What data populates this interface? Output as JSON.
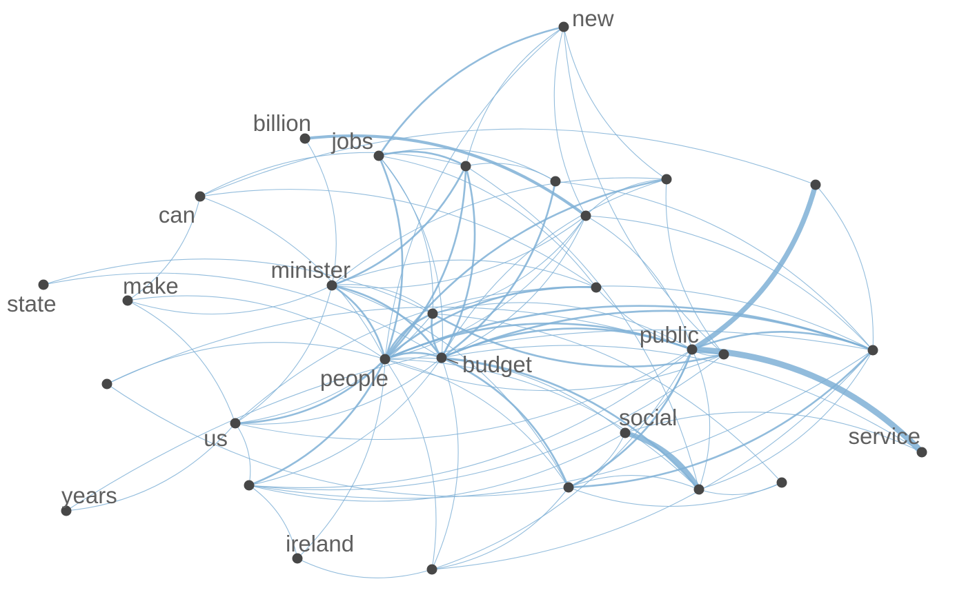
{
  "graph": {
    "colors": {
      "edge": "#7fb0d6",
      "node": "#474747",
      "label": "#5f5f5f"
    },
    "nodes": [
      {
        "id": "new",
        "label": "new"
      },
      {
        "id": "billion",
        "label": "billion"
      },
      {
        "id": "jobs",
        "label": "jobs"
      },
      {
        "id": "can",
        "label": "can"
      },
      {
        "id": "minister",
        "label": "minister"
      },
      {
        "id": "state",
        "label": "state"
      },
      {
        "id": "make",
        "label": "make"
      },
      {
        "id": "people",
        "label": "people"
      },
      {
        "id": "budget",
        "label": "budget"
      },
      {
        "id": "public",
        "label": "public"
      },
      {
        "id": "us",
        "label": "us"
      },
      {
        "id": "social",
        "label": "social"
      },
      {
        "id": "service",
        "label": "service"
      },
      {
        "id": "years",
        "label": "years"
      },
      {
        "id": "ireland",
        "label": "ireland"
      },
      {
        "id": "n1",
        "label": ""
      },
      {
        "id": "n2",
        "label": ""
      },
      {
        "id": "n3",
        "label": ""
      },
      {
        "id": "n4",
        "label": ""
      },
      {
        "id": "n5",
        "label": ""
      },
      {
        "id": "n6",
        "label": ""
      },
      {
        "id": "n7",
        "label": ""
      },
      {
        "id": "n8",
        "label": ""
      },
      {
        "id": "n9",
        "label": ""
      },
      {
        "id": "n10",
        "label": ""
      },
      {
        "id": "n11",
        "label": ""
      },
      {
        "id": "n12",
        "label": ""
      },
      {
        "id": "n13",
        "label": ""
      },
      {
        "id": "n14",
        "label": ""
      },
      {
        "id": "n15",
        "label": ""
      }
    ],
    "edges": [
      {
        "source": "jobs",
        "target": "new",
        "weight": 2
      },
      {
        "source": "n1",
        "target": "new",
        "weight": 1
      },
      {
        "source": "people",
        "target": "new",
        "weight": 1
      },
      {
        "source": "n6",
        "target": "new",
        "weight": 1
      },
      {
        "source": "n3",
        "target": "new",
        "weight": 1
      },
      {
        "source": "n4",
        "target": "new",
        "weight": 1
      },
      {
        "source": "billion",
        "target": "n3",
        "weight": 3
      },
      {
        "source": "billion",
        "target": "minister",
        "weight": 1
      },
      {
        "source": "jobs",
        "target": "n1",
        "weight": 2
      },
      {
        "source": "jobs",
        "target": "n2",
        "weight": 1
      },
      {
        "source": "jobs",
        "target": "n9",
        "weight": 1
      },
      {
        "source": "jobs",
        "target": "people",
        "weight": 2
      },
      {
        "source": "jobs",
        "target": "budget",
        "weight": 1
      },
      {
        "source": "jobs",
        "target": "n5",
        "weight": 1
      },
      {
        "source": "n1",
        "target": "n2",
        "weight": 1
      },
      {
        "source": "n1",
        "target": "minister",
        "weight": 2
      },
      {
        "source": "n1",
        "target": "people",
        "weight": 2
      },
      {
        "source": "n1",
        "target": "budget",
        "weight": 2
      },
      {
        "source": "n1",
        "target": "n12",
        "weight": 1
      },
      {
        "source": "n2",
        "target": "budget",
        "weight": 2
      },
      {
        "source": "n2",
        "target": "n7",
        "weight": 1
      },
      {
        "source": "can",
        "target": "n1",
        "weight": 1
      },
      {
        "source": "can",
        "target": "make",
        "weight": 1
      },
      {
        "source": "can",
        "target": "people",
        "weight": 1
      },
      {
        "source": "can",
        "target": "n9",
        "weight": 1
      },
      {
        "source": "n3",
        "target": "people",
        "weight": 1
      },
      {
        "source": "n3",
        "target": "budget",
        "weight": 1
      },
      {
        "source": "n3",
        "target": "n4",
        "weight": 1
      },
      {
        "source": "n3",
        "target": "public",
        "weight": 1
      },
      {
        "source": "n3",
        "target": "n7",
        "weight": 1
      },
      {
        "source": "n3",
        "target": "n5",
        "weight": 1
      },
      {
        "source": "n3",
        "target": "minister",
        "weight": 1
      },
      {
        "source": "n6",
        "target": "public",
        "weight": 1
      },
      {
        "source": "n6",
        "target": "people",
        "weight": 1
      },
      {
        "source": "n6",
        "target": "n9",
        "weight": 1
      },
      {
        "source": "can",
        "target": "n8",
        "weight": 1
      },
      {
        "source": "n8",
        "target": "public",
        "weight": 5
      },
      {
        "source": "n8",
        "target": "n7",
        "weight": 1
      },
      {
        "source": "minister",
        "target": "people",
        "weight": 2
      },
      {
        "source": "minister",
        "target": "budget",
        "weight": 2
      },
      {
        "source": "minister",
        "target": "n9",
        "weight": 1
      },
      {
        "source": "minister",
        "target": "n5",
        "weight": 1
      },
      {
        "source": "minister",
        "target": "n10",
        "weight": 1
      },
      {
        "source": "minister",
        "target": "n4",
        "weight": 1
      },
      {
        "source": "minister",
        "target": "make",
        "weight": 1
      },
      {
        "source": "minister",
        "target": "us",
        "weight": 1
      },
      {
        "source": "state",
        "target": "n5",
        "weight": 1
      },
      {
        "source": "state",
        "target": "budget",
        "weight": 1
      },
      {
        "source": "make",
        "target": "people",
        "weight": 1
      },
      {
        "source": "make",
        "target": "us",
        "weight": 1
      },
      {
        "source": "n14",
        "target": "people",
        "weight": 1
      },
      {
        "source": "n14",
        "target": "public",
        "weight": 1
      },
      {
        "source": "people",
        "target": "budget",
        "weight": 2
      },
      {
        "source": "people",
        "target": "n9",
        "weight": 2
      },
      {
        "source": "people",
        "target": "n5",
        "weight": 2
      },
      {
        "source": "people",
        "target": "n4",
        "weight": 2
      },
      {
        "source": "people",
        "target": "public",
        "weight": 2
      },
      {
        "source": "people",
        "target": "n7",
        "weight": 2
      },
      {
        "source": "people",
        "target": "social",
        "weight": 1
      },
      {
        "source": "people",
        "target": "n10",
        "weight": 1
      },
      {
        "source": "people",
        "target": "us",
        "weight": 2
      },
      {
        "source": "people",
        "target": "n11",
        "weight": 2
      },
      {
        "source": "people",
        "target": "ireland",
        "weight": 1
      },
      {
        "source": "people",
        "target": "n12",
        "weight": 1
      },
      {
        "source": "people",
        "target": "n13",
        "weight": 1
      },
      {
        "source": "budget",
        "target": "n5",
        "weight": 2
      },
      {
        "source": "budget",
        "target": "n4",
        "weight": 1
      },
      {
        "source": "budget",
        "target": "public",
        "weight": 2
      },
      {
        "source": "budget",
        "target": "n7",
        "weight": 2
      },
      {
        "source": "budget",
        "target": "service",
        "weight": 1
      },
      {
        "source": "budget",
        "target": "n10",
        "weight": 2
      },
      {
        "source": "budget",
        "target": "n12",
        "weight": 2
      },
      {
        "source": "budget",
        "target": "n13",
        "weight": 1
      },
      {
        "source": "budget",
        "target": "us",
        "weight": 1
      },
      {
        "source": "budget",
        "target": "n11",
        "weight": 1
      },
      {
        "source": "n5",
        "target": "us",
        "weight": 1
      },
      {
        "source": "n5",
        "target": "public",
        "weight": 1
      },
      {
        "source": "n5",
        "target": "n15",
        "weight": 1
      },
      {
        "source": "n5",
        "target": "n7",
        "weight": 1
      },
      {
        "source": "public",
        "target": "n7",
        "weight": 2
      },
      {
        "source": "public",
        "target": "service",
        "weight": 6
      },
      {
        "source": "public",
        "target": "social",
        "weight": 1
      },
      {
        "source": "public",
        "target": "n10",
        "weight": 2
      },
      {
        "source": "public",
        "target": "n11",
        "weight": 1
      },
      {
        "source": "public",
        "target": "n12",
        "weight": 1
      },
      {
        "source": "public",
        "target": "n13",
        "weight": 1
      },
      {
        "source": "public",
        "target": "us",
        "weight": 1
      },
      {
        "source": "n7",
        "target": "n10",
        "weight": 2
      },
      {
        "source": "n7",
        "target": "n12",
        "weight": 1
      },
      {
        "source": "n7",
        "target": "n13",
        "weight": 1
      },
      {
        "source": "n7",
        "target": "n11",
        "weight": 1
      },
      {
        "source": "social",
        "target": "n12",
        "weight": 5
      },
      {
        "source": "social",
        "target": "n10",
        "weight": 1
      },
      {
        "source": "social",
        "target": "service",
        "weight": 1
      },
      {
        "source": "social",
        "target": "n11",
        "weight": 1
      },
      {
        "source": "n15",
        "target": "n12",
        "weight": 1
      },
      {
        "source": "n15",
        "target": "n10",
        "weight": 1
      },
      {
        "source": "n10",
        "target": "n12",
        "weight": 1
      },
      {
        "source": "n10",
        "target": "n13",
        "weight": 1
      },
      {
        "source": "n10",
        "target": "n14",
        "weight": 1
      },
      {
        "source": "us",
        "target": "n11",
        "weight": 1
      },
      {
        "source": "us",
        "target": "years",
        "weight": 1
      },
      {
        "source": "us",
        "target": "n9",
        "weight": 1
      },
      {
        "source": "years",
        "target": "n7",
        "weight": 1
      },
      {
        "source": "n11",
        "target": "ireland",
        "weight": 1
      },
      {
        "source": "n13",
        "target": "ireland",
        "weight": 1
      },
      {
        "source": "n6",
        "target": "n5",
        "weight": 2
      },
      {
        "source": "n6",
        "target": "n11",
        "weight": 1
      },
      {
        "source": "n6",
        "target": "n4",
        "weight": 1
      }
    ]
  }
}
